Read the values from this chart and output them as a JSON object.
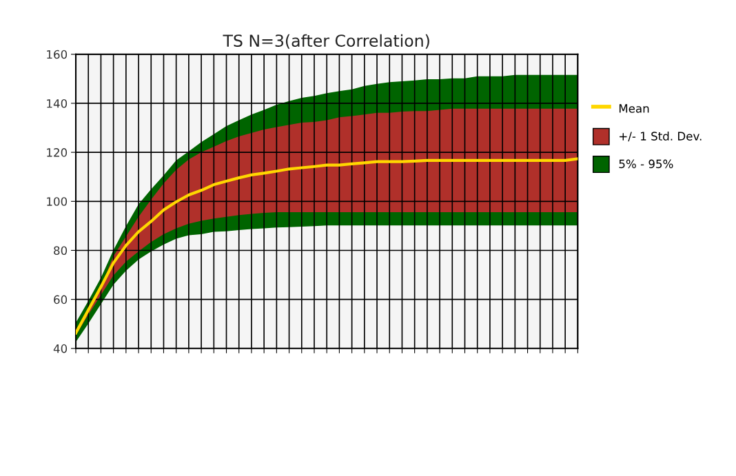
{
  "chart_data": {
    "type": "line",
    "title": "TS N=3(after Correlation)",
    "categories": [
      null,
      null,
      null,
      null,
      null,
      null,
      null,
      null,
      null,
      null,
      null,
      null,
      null,
      null,
      null,
      null,
      null,
      null,
      null,
      null,
      null,
      null,
      null,
      null,
      null,
      null,
      null,
      null,
      null,
      null,
      null,
      null,
      null,
      null,
      null,
      null,
      null,
      null,
      null,
      null,
      null
    ],
    "series": [
      {
        "name": "5% - 95%",
        "type": "area",
        "color": "#006400",
        "values": [
          null,
          null,
          null,
          null,
          null,
          null,
          null,
          null,
          null,
          null,
          null,
          null,
          null,
          null,
          null,
          null,
          null,
          null,
          null,
          null,
          null,
          null,
          null,
          null,
          null,
          null,
          null,
          null,
          null,
          null,
          null,
          null,
          null,
          null,
          null,
          null,
          null,
          null,
          null,
          null,
          null
        ],
        "lower": [
          42.6,
          50.1,
          58.1,
          66,
          71.7,
          76.3,
          79.6,
          82.4,
          84.8,
          86.2,
          86.6,
          87.6,
          87.8,
          88.3,
          88.7,
          89,
          89.3,
          89.5,
          89.7,
          89.9,
          90.2,
          90.2,
          90.2,
          90.2,
          90.2,
          90.2,
          90.2,
          90.2,
          90.2,
          90.2,
          90.2,
          90.2,
          90.2,
          90.2,
          90.2,
          90.2,
          90.2,
          90.2,
          90.2,
          90.2,
          90.2
        ],
        "upper": [
          50.5,
          59.4,
          68.8,
          80.1,
          89.9,
          98.8,
          104.9,
          110.6,
          116.7,
          120.4,
          124.2,
          127.4,
          130.7,
          133.1,
          135.4,
          137.3,
          139.4,
          140.9,
          142.2,
          143,
          144.1,
          145,
          145.7,
          147.1,
          147.9,
          148.6,
          149,
          149.3,
          149.8,
          149.8,
          150.2,
          150.2,
          151,
          151,
          151,
          151.6,
          151.6,
          151.6,
          151.6,
          151.6,
          151.6
        ]
      },
      {
        "name": "+/- 1 Std. Dev.",
        "type": "area",
        "color": "#b0302a",
        "values": [
          null,
          null,
          null,
          null,
          null,
          null,
          null,
          null,
          null,
          null,
          null,
          null,
          null,
          null,
          null,
          null,
          null,
          null,
          null,
          null,
          null,
          null,
          null,
          null,
          null,
          null,
          null,
          null,
          null,
          null,
          null,
          null,
          null,
          null,
          null,
          null,
          null,
          null,
          null,
          null,
          null
        ],
        "lower": [
          45.4,
          53.8,
          61.8,
          69.8,
          75.4,
          79.6,
          83.4,
          86.6,
          89,
          90.9,
          92.1,
          93,
          93.7,
          94.4,
          94.9,
          95.3,
          95.6,
          95.6,
          95.6,
          95.6,
          95.6,
          95.6,
          95.6,
          95.6,
          95.6,
          95.6,
          95.6,
          95.6,
          95.6,
          95.6,
          95.6,
          95.6,
          95.6,
          95.6,
          95.6,
          95.6,
          95.6,
          95.6,
          95.6,
          95.6,
          95.6
        ],
        "upper": [
          47.2,
          56.2,
          65.1,
          77.7,
          85.7,
          93.7,
          100.7,
          107.3,
          112.9,
          117.1,
          120,
          122.3,
          124.6,
          126.5,
          127.9,
          129.3,
          130.3,
          131.2,
          132.1,
          132.4,
          133.1,
          134.3,
          134.8,
          135.4,
          136.1,
          136.1,
          136.6,
          136.8,
          136.8,
          137.3,
          137.8,
          137.8,
          137.8,
          137.8,
          137.8,
          137.8,
          137.8,
          137.8,
          137.8,
          137.8,
          137.8
        ]
      },
      {
        "name": "Mean",
        "color": "#ffd700",
        "values": [
          46.3,
          55.7,
          65.1,
          74.9,
          82,
          87.6,
          91.8,
          96.5,
          99.8,
          102.6,
          104.5,
          106.8,
          108.2,
          109.6,
          110.8,
          111.5,
          112.3,
          113.2,
          113.7,
          114.2,
          114.8,
          114.8,
          115.3,
          115.7,
          116.2,
          116.2,
          116.2,
          116.4,
          116.7,
          116.7,
          116.7,
          116.7,
          116.7,
          116.7,
          116.7,
          116.7,
          116.7,
          116.7,
          116.7,
          116.7,
          117.4
        ]
      }
    ],
    "ylim": [
      40,
      160
    ],
    "yticks": [
      40,
      60,
      80,
      100,
      120,
      140,
      160
    ],
    "grid": true,
    "legend": "right"
  }
}
